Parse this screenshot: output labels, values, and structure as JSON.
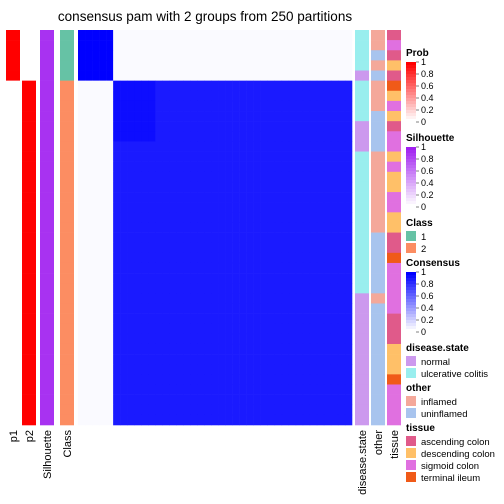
{
  "title": "consensus pam with 2 groups from 250 partitions",
  "colors": {
    "prob_high": "#FF0000",
    "silhouette_high": "#A020F0",
    "class_1": "#66C2A5",
    "class_2": "#FC8D62",
    "consensus_high": "#0000FF",
    "normal": "#CC99EE",
    "ulcerative_colitis": "#99EEEE",
    "inflamed": "#F4A89A",
    "uninflamed": "#A8C4EE",
    "ascending_colon": "#E05A8A",
    "descending_colon": "#FFC068",
    "sigmoid_colon": "#E070E0",
    "terminal_ileum": "#F05A18"
  },
  "column_labels": {
    "p1": "p1",
    "p2": "p2",
    "silhouette": "Silhouette",
    "class": "Class",
    "disease_state": "disease.state",
    "other": "other",
    "tissue": "tissue"
  },
  "legends": {
    "prob": {
      "title": "Prob",
      "ticks": [
        "1",
        "0.8",
        "0.6",
        "0.4",
        "0.2",
        "0"
      ]
    },
    "silhouette": {
      "title": "Silhouette",
      "ticks": [
        "1",
        "0.8",
        "0.6",
        "0.4",
        "0.2",
        "0"
      ]
    },
    "class": {
      "title": "Class",
      "items": [
        "1",
        "2"
      ]
    },
    "consensus": {
      "title": "Consensus",
      "ticks": [
        "1",
        "0.8",
        "0.6",
        "0.4",
        "0.2",
        "0"
      ]
    },
    "disease_state": {
      "title": "disease.state",
      "items": [
        "normal",
        "ulcerative colitis"
      ]
    },
    "other": {
      "title": "other",
      "items": [
        "inflamed",
        "uninflamed"
      ]
    },
    "tissue": {
      "title": "tissue",
      "items": [
        "ascending colon",
        "descending colon",
        "sigmoid colon",
        "terminal ileum"
      ]
    }
  },
  "chart_data": {
    "type": "heatmap",
    "title": "consensus pam with 2 groups from 250 partitions",
    "n_samples": 39,
    "group_sizes": [
      5,
      34
    ],
    "consensus_blocks": [
      {
        "rows": [
          1,
          5
        ],
        "cols": [
          1,
          5
        ],
        "value": 1.0
      },
      {
        "rows": [
          6,
          39
        ],
        "cols": [
          6,
          39
        ],
        "value": 0.9
      },
      {
        "rows": [
          1,
          5
        ],
        "cols": [
          6,
          39
        ],
        "value": 0.0
      }
    ],
    "consensus_subgroup_note": "samples 6-11 show slightly higher consensus (~0.95) with each other",
    "annotations": {
      "p1": "1.0 for samples 1-5, 0 otherwise",
      "p2": "1.0 for samples 6-39, 0 otherwise",
      "silhouette": "~0.92 for all samples",
      "class": "1 for samples 1-5, 2 for samples 6-39"
    },
    "sample_annotations": {
      "disease_state": [
        "ulcerative colitis",
        "ulcerative colitis",
        "ulcerative colitis",
        "ulcerative colitis",
        "normal",
        "ulcerative colitis",
        "ulcerative colitis",
        "ulcerative colitis",
        "ulcerative colitis",
        "normal",
        "normal",
        "normal",
        "ulcerative colitis",
        "ulcerative colitis",
        "ulcerative colitis",
        "ulcerative colitis",
        "ulcerative colitis",
        "ulcerative colitis",
        "ulcerative colitis",
        "ulcerative colitis",
        "ulcerative colitis",
        "ulcerative colitis",
        "ulcerative colitis",
        "ulcerative colitis",
        "ulcerative colitis",
        "ulcerative colitis",
        "normal",
        "normal",
        "normal",
        "normal",
        "normal",
        "normal",
        "normal",
        "normal",
        "normal",
        "normal",
        "normal",
        "normal",
        "normal"
      ],
      "other": [
        "inflamed",
        "inflamed",
        "uninflamed",
        "inflamed",
        "uninflamed",
        "inflamed",
        "inflamed",
        "inflamed",
        "uninflamed",
        "uninflamed",
        "uninflamed",
        "uninflamed",
        "inflamed",
        "inflamed",
        "inflamed",
        "inflamed",
        "inflamed",
        "inflamed",
        "inflamed",
        "inflamed",
        "uninflamed",
        "uninflamed",
        "uninflamed",
        "uninflamed",
        "uninflamed",
        "uninflamed",
        "inflamed",
        "uninflamed",
        "uninflamed",
        "uninflamed",
        "uninflamed",
        "uninflamed",
        "uninflamed",
        "uninflamed",
        "uninflamed",
        "uninflamed",
        "uninflamed",
        "uninflamed",
        "uninflamed"
      ],
      "tissue": [
        "ascending colon",
        "sigmoid colon",
        "ascending colon",
        "descending colon",
        "ascending colon",
        "terminal ileum",
        "descending colon",
        "sigmoid colon",
        "descending colon",
        "ascending colon",
        "sigmoid colon",
        "sigmoid colon",
        "descending colon",
        "sigmoid colon",
        "descending colon",
        "descending colon",
        "sigmoid colon",
        "sigmoid colon",
        "descending colon",
        "descending colon",
        "ascending colon",
        "ascending colon",
        "terminal ileum",
        "sigmoid colon",
        "sigmoid colon",
        "sigmoid colon",
        "sigmoid colon",
        "sigmoid colon",
        "ascending colon",
        "ascending colon",
        "ascending colon",
        "descending colon",
        "descending colon",
        "descending colon",
        "terminal ileum",
        "sigmoid colon",
        "sigmoid colon",
        "sigmoid colon",
        "sigmoid colon"
      ]
    },
    "legend_placement": "right"
  }
}
